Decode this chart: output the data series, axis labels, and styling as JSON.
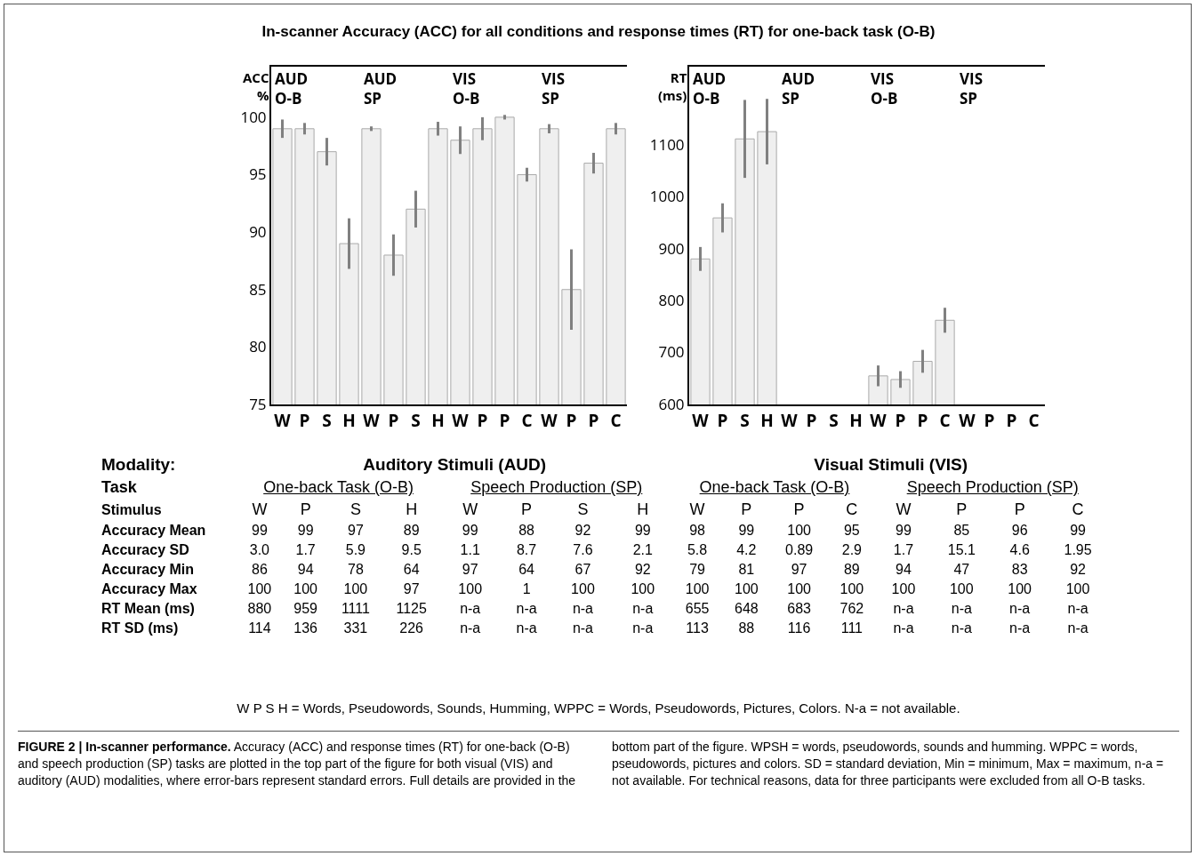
{
  "chart_data": [
    {
      "type": "bar",
      "title": "In-scanner Accuracy (ACC) for all conditions and response times  (RT) for one-back task (O-B)",
      "subtitle": "AUD\nO-B",
      "ylabel": "ACC\n%",
      "categories": [
        "W",
        "P",
        "S",
        "H"
      ],
      "values": [
        99,
        99,
        97,
        89
      ],
      "errors": [
        0.8,
        0.5,
        1.2,
        2.2
      ],
      "color": "#efefef",
      "ylim": [
        75,
        104.4
      ],
      "yticks": [
        75,
        80,
        85,
        90,
        95,
        100
      ]
    },
    {
      "type": "bar",
      "subtitle": "AUD\nSP",
      "categories": [
        "W",
        "P",
        "S",
        "H"
      ],
      "values": [
        99,
        88,
        92,
        99
      ],
      "errors": [
        0.2,
        1.8,
        1.6,
        0.6
      ],
      "color": "#efefef",
      "ylim": [
        75,
        104.4
      ],
      "yticks": [
        75,
        80,
        85,
        90,
        95,
        100
      ],
      "tick_labels": "x"
    },
    {
      "type": "bar",
      "subtitle": "VIS\nO-B",
      "categories": [
        "W",
        "P",
        "P",
        "C"
      ],
      "values": [
        98,
        99,
        100,
        95
      ],
      "errors": [
        1.2,
        1.0,
        0.2,
        0.6
      ],
      "color": "#efefef",
      "ylim": [
        75,
        104.4
      ],
      "yticks": [
        75,
        80,
        85,
        90,
        95,
        100
      ],
      "tick_labels": "x"
    },
    {
      "type": "bar",
      "subtitle": "VIS\nSP",
      "categories": [
        "W",
        "P",
        "P",
        "C"
      ],
      "values": [
        99,
        85,
        96,
        99
      ],
      "errors": [
        0.4,
        3.5,
        0.9,
        0.5
      ],
      "color": "#efefef",
      "ylim": [
        75,
        104.4
      ],
      "yticks": [
        75,
        80,
        85,
        90,
        95,
        100
      ],
      "tick_labels": "x"
    },
    {
      "type": "bar",
      "subtitle": "AUD\nO-B",
      "ylabel": "RT\n(ms)",
      "categories": [
        "W",
        "P",
        "S",
        "H"
      ],
      "values": [
        880,
        959,
        1111,
        1125
      ],
      "errors": [
        23,
        28,
        75,
        63
      ],
      "color": "#efefef",
      "ylim": [
        600,
        1250
      ],
      "yticks": [
        600,
        700,
        800,
        900,
        1000,
        1100
      ]
    },
    {
      "type": "bar",
      "subtitle": "AUD\nSP",
      "categories": [
        "W",
        "P",
        "S",
        "H"
      ],
      "values": [
        null,
        null,
        null,
        null
      ],
      "color": "#efefef",
      "ylim": [
        600,
        1250
      ],
      "yticks": [
        600,
        700,
        800,
        900,
        1000,
        1100
      ],
      "tick_labels": "x"
    },
    {
      "type": "bar",
      "subtitle": "VIS\nO-B",
      "categories": [
        "W",
        "P",
        "P",
        "C"
      ],
      "values": [
        655,
        648,
        683,
        762
      ],
      "errors": [
        20,
        16,
        22,
        24
      ],
      "color": "#efefef",
      "ylim": [
        600,
        1250
      ],
      "yticks": [
        600,
        700,
        800,
        900,
        1000,
        1100
      ],
      "tick_labels": "x"
    },
    {
      "type": "bar",
      "subtitle": "VIS\nSP",
      "categories": [
        "W",
        "P",
        "P",
        "C"
      ],
      "values": [
        null,
        null,
        null,
        null
      ],
      "color": "#efefef",
      "ylim": [
        600,
        1250
      ],
      "yticks": [
        600,
        700,
        800,
        900,
        1000,
        1100
      ],
      "tick_labels": "x"
    },
    {
      "type": "other",
      "categories": [
        "W",
        "P",
        "S",
        "H",
        "W",
        "P",
        "S",
        "H",
        "W",
        "P",
        "P",
        "C",
        "W",
        "P",
        "P",
        "C"
      ],
      "y_categories": [
        "Accuracy Mean",
        "Accuracy  SD",
        "Accuracy Min",
        "Accuracy Max",
        "RT Mean (ms)",
        "RT SD (ms)"
      ],
      "cell_labels": [
        [
          "99",
          "99",
          "97",
          "89",
          "99",
          "88",
          "92",
          "99",
          "98",
          "99",
          "100",
          "95",
          "99",
          "85",
          "96",
          "99"
        ],
        [
          "3.0",
          "1.7",
          "5.9",
          "9.5",
          "1.1",
          "8.7",
          "7.6",
          "2.1",
          "5.8",
          "4.2",
          "0.89",
          "2.9",
          "1.7",
          "15.1",
          "4.6",
          "1.95"
        ],
        [
          "86",
          "94",
          "78",
          "64",
          "97",
          "64",
          "67",
          "92",
          "79",
          "81",
          "97",
          "89",
          "94",
          "47",
          "83",
          "92"
        ],
        [
          "100",
          "100",
          "100",
          "97",
          "100",
          "1",
          "100",
          "100",
          "100",
          "100",
          "100",
          "100",
          "100",
          "100",
          "100",
          "100"
        ],
        [
          "880",
          "959",
          "1111",
          "1125",
          "n-a",
          "n-a",
          "n-a",
          "n-a",
          "655",
          "648",
          "683",
          "762",
          "n-a",
          "n-a",
          "n-a",
          "n-a"
        ],
        [
          "114",
          "136",
          "331",
          "226",
          "n-a",
          "n-a",
          "n-a",
          "n-a",
          "113",
          "88",
          "116",
          "111",
          "n-a",
          "n-a",
          "n-a",
          "n-a"
        ]
      ],
      "annotations": [
        "Modality:",
        "Auditory Stimuli  (AUD)",
        "Visual Stimuli (VIS)",
        "Task",
        "One-back Task  (O-B)",
        "Speech Production (SP)",
        "One-back Task  (O-B)",
        "Speech Production  (SP)",
        "Stimulus",
        "W P S H  = Words, Pseudowords, Sounds, Humming, WPPC = Words, Pseudowords, Pictures, Colors. N-a = not available.",
        "FIGURE 2 | In-scanner performance.",
        "Accuracy (ACC) and response times (RT) for one-back (O-B) and speech production (SP) tasks are plotted in the top part of the figure for both visual (VIS) and auditory (AUD) modalities, where error-bars represent standard errors. Full details are provided in the bottom part of the figure. WPSH = words, pseudowords, sounds and humming. WPPC = words, pseudowords, pictures and colors. SD = standard deviation, Min = minimum, Max = maximum, n-a = not available. For technical reasons, data for three participants were excluded from all O-B tasks."
      ]
    }
  ]
}
